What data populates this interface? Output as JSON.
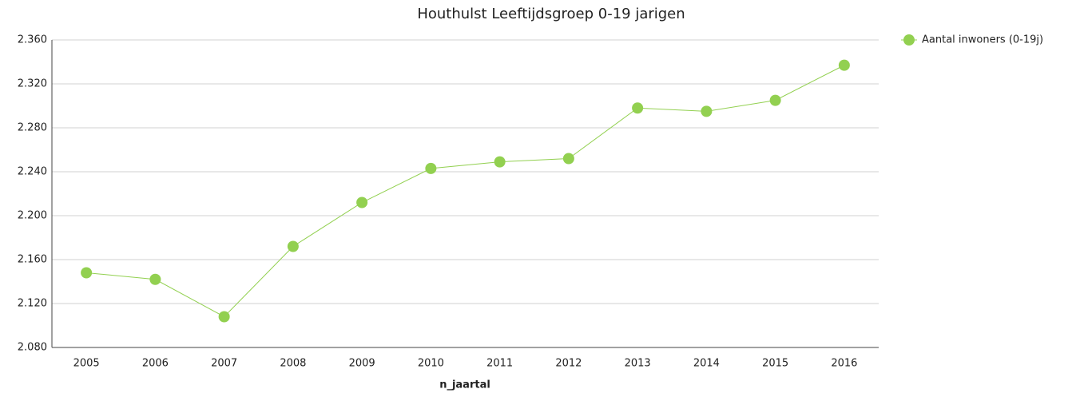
{
  "chart_data": {
    "type": "line",
    "title": "Houthulst  Leeftijdsgroep 0-19 jarigen",
    "x_label": "n_jaartal",
    "categories": [
      "2005",
      "2006",
      "2007",
      "2008",
      "2009",
      "2010",
      "2011",
      "2012",
      "2013",
      "2014",
      "2015",
      "2016"
    ],
    "series": [
      {
        "name": "Aantal inwoners (0-19j)",
        "color": "#92d050",
        "values": [
          2148,
          2142,
          2108,
          2172,
          2212,
          2243,
          2249,
          2252,
          2298,
          2295,
          2305,
          2337
        ]
      }
    ],
    "ylim": [
      2080,
      2360
    ],
    "yticks": [
      {
        "value": 2080,
        "label": "2.080"
      },
      {
        "value": 2120,
        "label": "2.120"
      },
      {
        "value": 2160,
        "label": "2.160"
      },
      {
        "value": 2200,
        "label": "2.200"
      },
      {
        "value": 2240,
        "label": "2.240"
      },
      {
        "value": 2280,
        "label": "2.280"
      },
      {
        "value": 2320,
        "label": "2.320"
      },
      {
        "value": 2360,
        "label": "2.360"
      }
    ],
    "grid": true,
    "legend": "right"
  }
}
